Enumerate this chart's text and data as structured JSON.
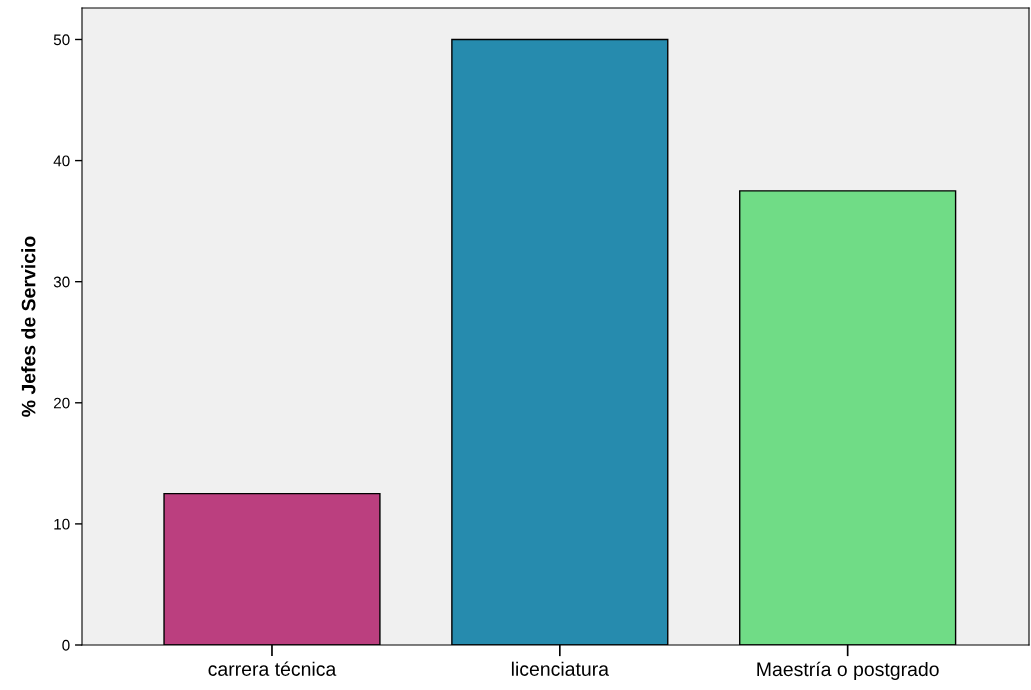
{
  "chart_data": {
    "type": "bar",
    "ylabel": "% Jefes de Servicio",
    "categories": [
      "carrera técnica",
      "licenciatura",
      "Maestría o postgrado"
    ],
    "values": [
      12.5,
      50,
      37.5
    ],
    "colors": [
      "#bb3f7f",
      "#268bae",
      "#70dc86"
    ],
    "ylim": [
      0,
      52.6
    ],
    "yticks": [
      0,
      10,
      20,
      30,
      40,
      50
    ],
    "grid": false
  }
}
